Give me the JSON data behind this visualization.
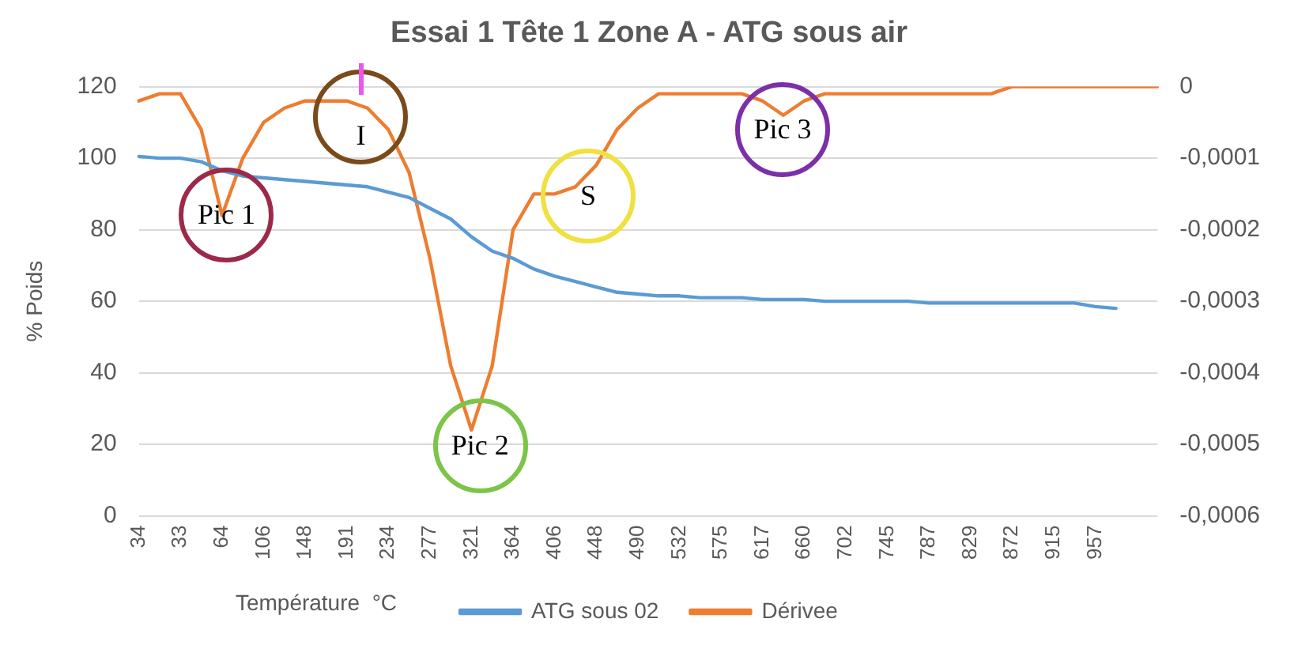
{
  "chart_data": {
    "type": "line",
    "title": "Essai 1 Tête 1 Zone A - ATG sous air",
    "xlabel": "Température  °C",
    "ylabel": "% Poids",
    "categories": [
      "34",
      null,
      "33",
      null,
      "64",
      null,
      "106",
      null,
      "148",
      null,
      "191",
      null,
      "234",
      null,
      "277",
      null,
      "321",
      null,
      "364",
      null,
      "406",
      null,
      "448",
      null,
      "490",
      null,
      "532",
      null,
      "575",
      null,
      "617",
      null,
      "660",
      null,
      "702",
      null,
      "745",
      null,
      "787",
      null,
      "829",
      null,
      "872",
      null,
      "915",
      null,
      "957",
      null,
      null,
      null
    ],
    "series": [
      {
        "name": "ATG sous 02",
        "color": "#5b9bd5",
        "values": [
          100.5,
          100,
          100,
          99,
          96.5,
          95,
          94.5,
          94,
          93.5,
          93,
          92.5,
          92,
          90.5,
          89,
          86,
          83,
          78,
          74,
          72,
          69,
          67,
          65.5,
          64,
          62.5,
          62,
          61.5,
          61.5,
          61,
          61,
          61,
          60.5,
          60.5,
          60.5,
          60,
          60,
          60,
          60,
          60,
          59.5,
          59.5,
          59.5,
          59.5,
          59.5,
          59.5,
          59.5,
          59.5,
          58.5,
          58,
          null,
          null
        ]
      },
      {
        "name": "Dérivee",
        "color": "#ed7d31",
        "axis": "y2",
        "values": [
          -2e-05,
          -1e-05,
          -1e-05,
          -6e-05,
          -0.00018,
          -0.0001,
          -5e-05,
          -3e-05,
          -2e-05,
          -2e-05,
          -2e-05,
          -3e-05,
          -6e-05,
          -0.00012,
          -0.00024,
          -0.00039,
          -0.00048,
          -0.00039,
          -0.0002,
          -0.00015,
          -0.00015,
          -0.00014,
          -0.00011,
          -6e-05,
          -3e-05,
          -1e-05,
          -1e-05,
          -1e-05,
          -1e-05,
          -1e-05,
          -2e-05,
          -4e-05,
          -2e-05,
          -1e-05,
          -1e-05,
          -1e-05,
          -1e-05,
          -1e-05,
          -1e-05,
          -1e-05,
          -1e-05,
          -1e-05,
          0,
          0,
          0,
          0,
          0,
          0,
          0,
          0
        ]
      }
    ],
    "ylim": [
      0,
      120
    ],
    "yticks": [
      0,
      20,
      40,
      60,
      80,
      100,
      120
    ],
    "y2lim": [
      -0.0006,
      0
    ],
    "y2ticks": [
      {
        "value": -0.0006,
        "label": "-0,0006"
      },
      {
        "value": -0.0005,
        "label": "-0,0005"
      },
      {
        "value": -0.0004,
        "label": "-0,0004"
      },
      {
        "value": -0.0003,
        "label": "-0,0003"
      },
      {
        "value": -0.0002,
        "label": "-0,0002"
      },
      {
        "value": -0.0001,
        "label": "-0,0001"
      },
      0
    ],
    "annotations": [
      "Pic 1",
      "I",
      "Pic 2",
      "S",
      "Pic 3"
    ],
    "grid": "y",
    "legend": "bottom",
    "marker": "none",
    "line_style": "solid"
  }
}
